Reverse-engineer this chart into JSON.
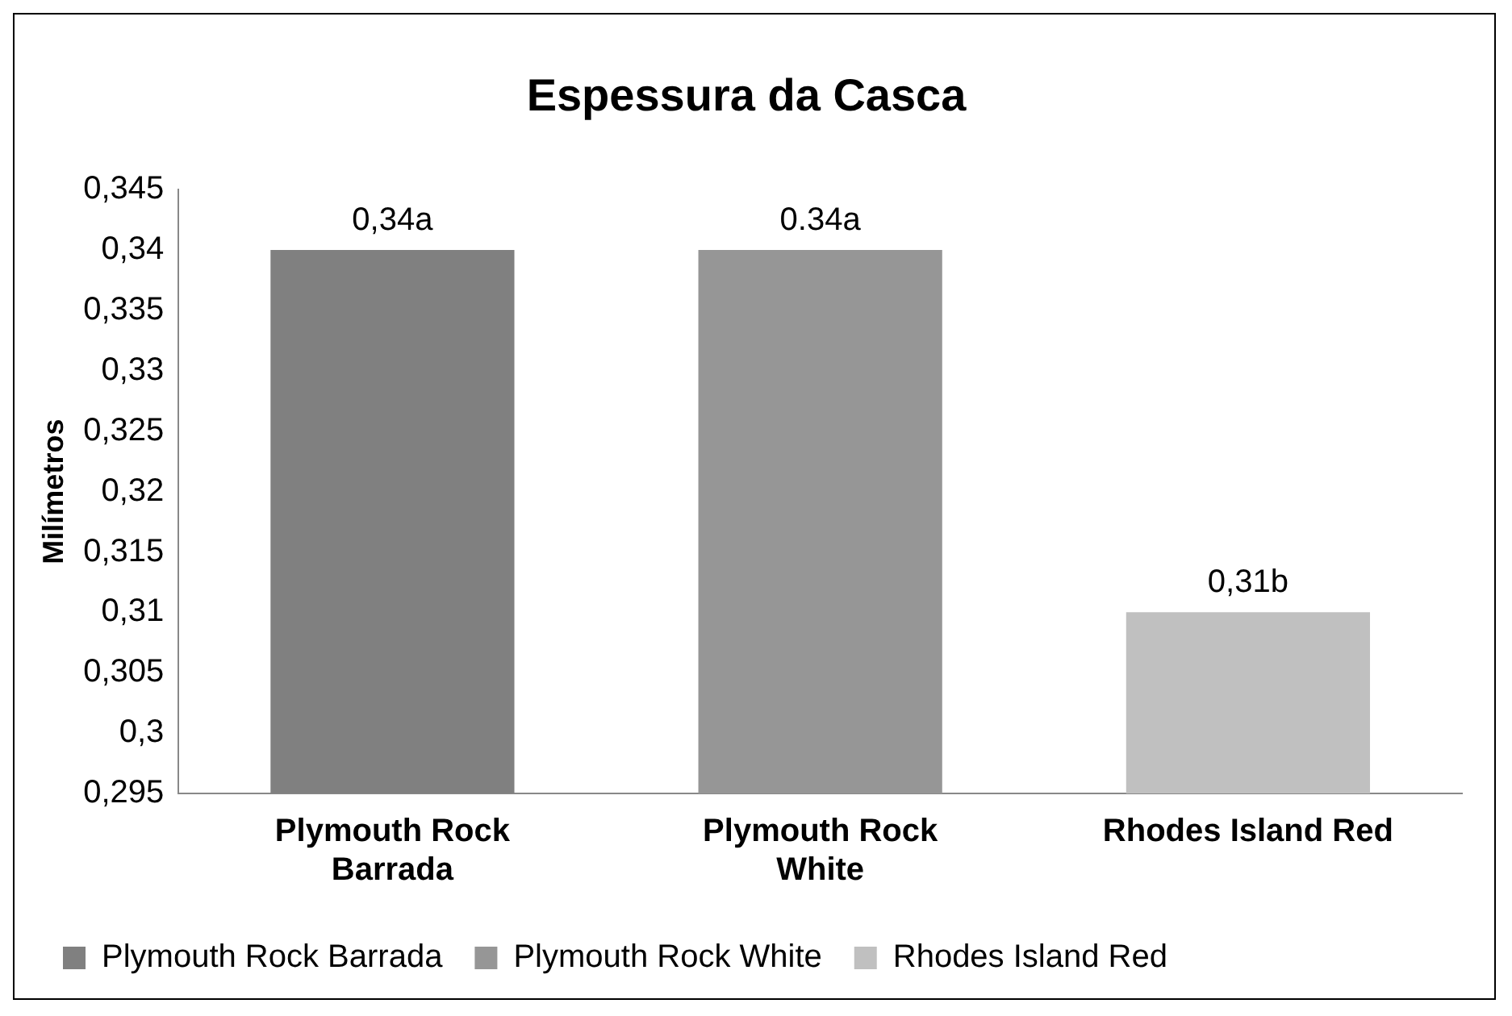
{
  "chart_data": {
    "type": "bar",
    "title": "Espessura da Casca",
    "ylabel": "Milímetros",
    "categories": [
      "Plymouth Rock Barrada",
      "Plymouth Rock White",
      "Rhodes Island Red"
    ],
    "series": [
      {
        "name": "Plymouth Rock Barrada",
        "color": "#808080",
        "values": [
          0.34,
          null,
          null
        ],
        "value_labels": [
          "0,34a",
          null,
          null
        ]
      },
      {
        "name": "Plymouth Rock White",
        "color": "#969696",
        "values": [
          null,
          0.34,
          null
        ],
        "value_labels": [
          null,
          "0.34a",
          null
        ]
      },
      {
        "name": "Rhodes Island Red",
        "color": "#c0c0c0",
        "values": [
          null,
          null,
          0.31
        ],
        "value_labels": [
          null,
          null,
          "0,31b"
        ]
      }
    ],
    "ylim": [
      0.295,
      0.345
    ],
    "yticks": [
      {
        "value": 0.295,
        "label": "0,295"
      },
      {
        "value": 0.3,
        "label": "0,3"
      },
      {
        "value": 0.305,
        "label": "0,305"
      },
      {
        "value": 0.31,
        "label": "0,31"
      },
      {
        "value": 0.315,
        "label": "0,315"
      },
      {
        "value": 0.32,
        "label": "0,32"
      },
      {
        "value": 0.325,
        "label": "0,325"
      },
      {
        "value": 0.33,
        "label": "0,33"
      },
      {
        "value": 0.335,
        "label": "0,335"
      },
      {
        "value": 0.34,
        "label": "0,34"
      },
      {
        "value": 0.345,
        "label": "0,345"
      }
    ],
    "grid": false,
    "legend": "bottom"
  }
}
